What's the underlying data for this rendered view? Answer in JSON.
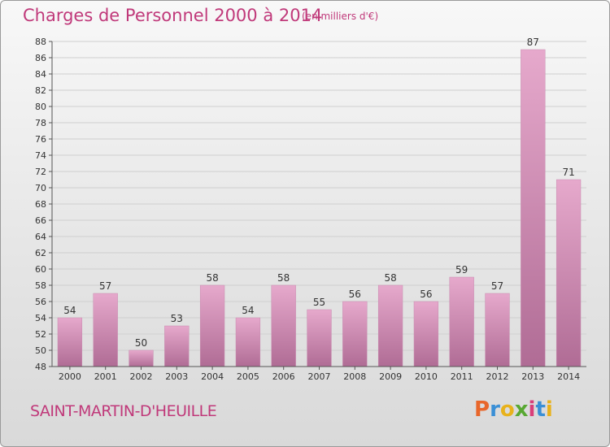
{
  "title": "Charges de Personnel 2000 à 2014",
  "subtitle": "(en milliers d'€)",
  "commune": "SAINT-MARTIN-D'HEUILLE",
  "logo": {
    "letters": [
      "P",
      "r",
      "o",
      "x",
      "i",
      "t",
      "i"
    ],
    "colors": [
      "#e8662a",
      "#3a8fd6",
      "#e8b21c",
      "#58a832",
      "#d93f7a",
      "#3a8fd6",
      "#e8b21c"
    ]
  },
  "colors": {
    "bar_light": "#e6a9cc",
    "bar_dark": "#b06c95",
    "text": "#c0397a",
    "axis": "#555555",
    "grid": "#cfcfcf"
  },
  "chart_data": {
    "type": "bar",
    "title": "Charges de Personnel 2000 à 2014",
    "subtitle": "(en milliers d'€)",
    "categories": [
      "2000",
      "2001",
      "2002",
      "2003",
      "2004",
      "2005",
      "2006",
      "2007",
      "2008",
      "2009",
      "2010",
      "2011",
      "2012",
      "2013",
      "2014"
    ],
    "values": [
      54,
      57,
      50,
      53,
      58,
      54,
      58,
      55,
      56,
      58,
      56,
      59,
      57,
      87,
      71
    ],
    "ylim": [
      48,
      88
    ],
    "ytick_step": 2,
    "grid": true,
    "legend": "none"
  }
}
